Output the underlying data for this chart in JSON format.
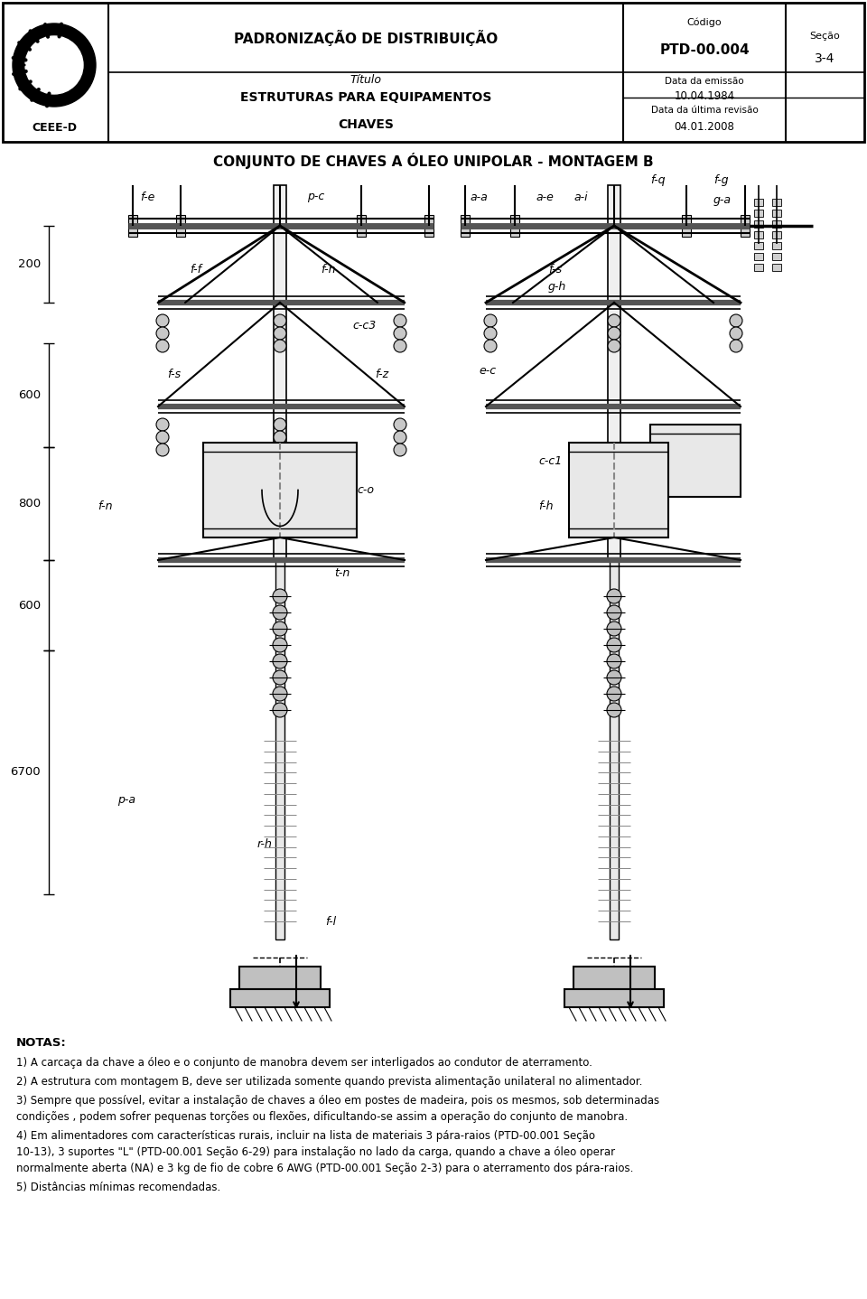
{
  "header": {
    "company": "CEEE-D",
    "title_main": "PADRONIZAÇÃO DE DISTRIBUIÇÃO",
    "title_sub": "Título",
    "title_sub2": "ESTRUTURAS PARA EQUIPAMENTOS",
    "title_sub3": "CHAVES",
    "code_label": "Código",
    "code": "PTD-00.004",
    "date_emission_label": "Data da emissão",
    "date_emission": "10.04.1984",
    "date_revision_label": "Data da última revisão",
    "date_revision": "04.01.2008",
    "section_label": "Seção",
    "section": "3-4"
  },
  "drawing_title": "CONJUNTO DE CHAVES A ÓLEO UNIPOLAR - MONTAGEM B",
  "notes_title": "NOTAS:",
  "notes": [
    "1) A carcaça da chave a óleo e o conjunto de manobra devem ser interligados ao condutor de aterramento.",
    "2) A estrutura com montagem B, deve ser utilizada somente quando prevista alimentação unilateral no alimentador.",
    "3) Sempre que possível, evitar a instalação de chaves a óleo em postes de madeira, pois os mesmos, sob determinadas condições , podem sofrer pequenas torções ou flexões, dificultando-se assim a operação do conjunto de manobra.",
    "4) Em alimentadores com características rurais, incluir na lista de materiais 3 pára-raios (PTD-00.001 Seção 10-13), 3 suportes \"L\" (PTD-00.001 Seção 6-29) para instalação no lado da carga, quando a chave a óleo operar normalmente aberta (NA) e 3 kg de fio de cobre 6 AWG (PTD-00.001 Seção 2-3) para o aterramento dos pára-raios.",
    "5) Distâncias mínimas recomendadas."
  ],
  "background_color": "#ffffff"
}
